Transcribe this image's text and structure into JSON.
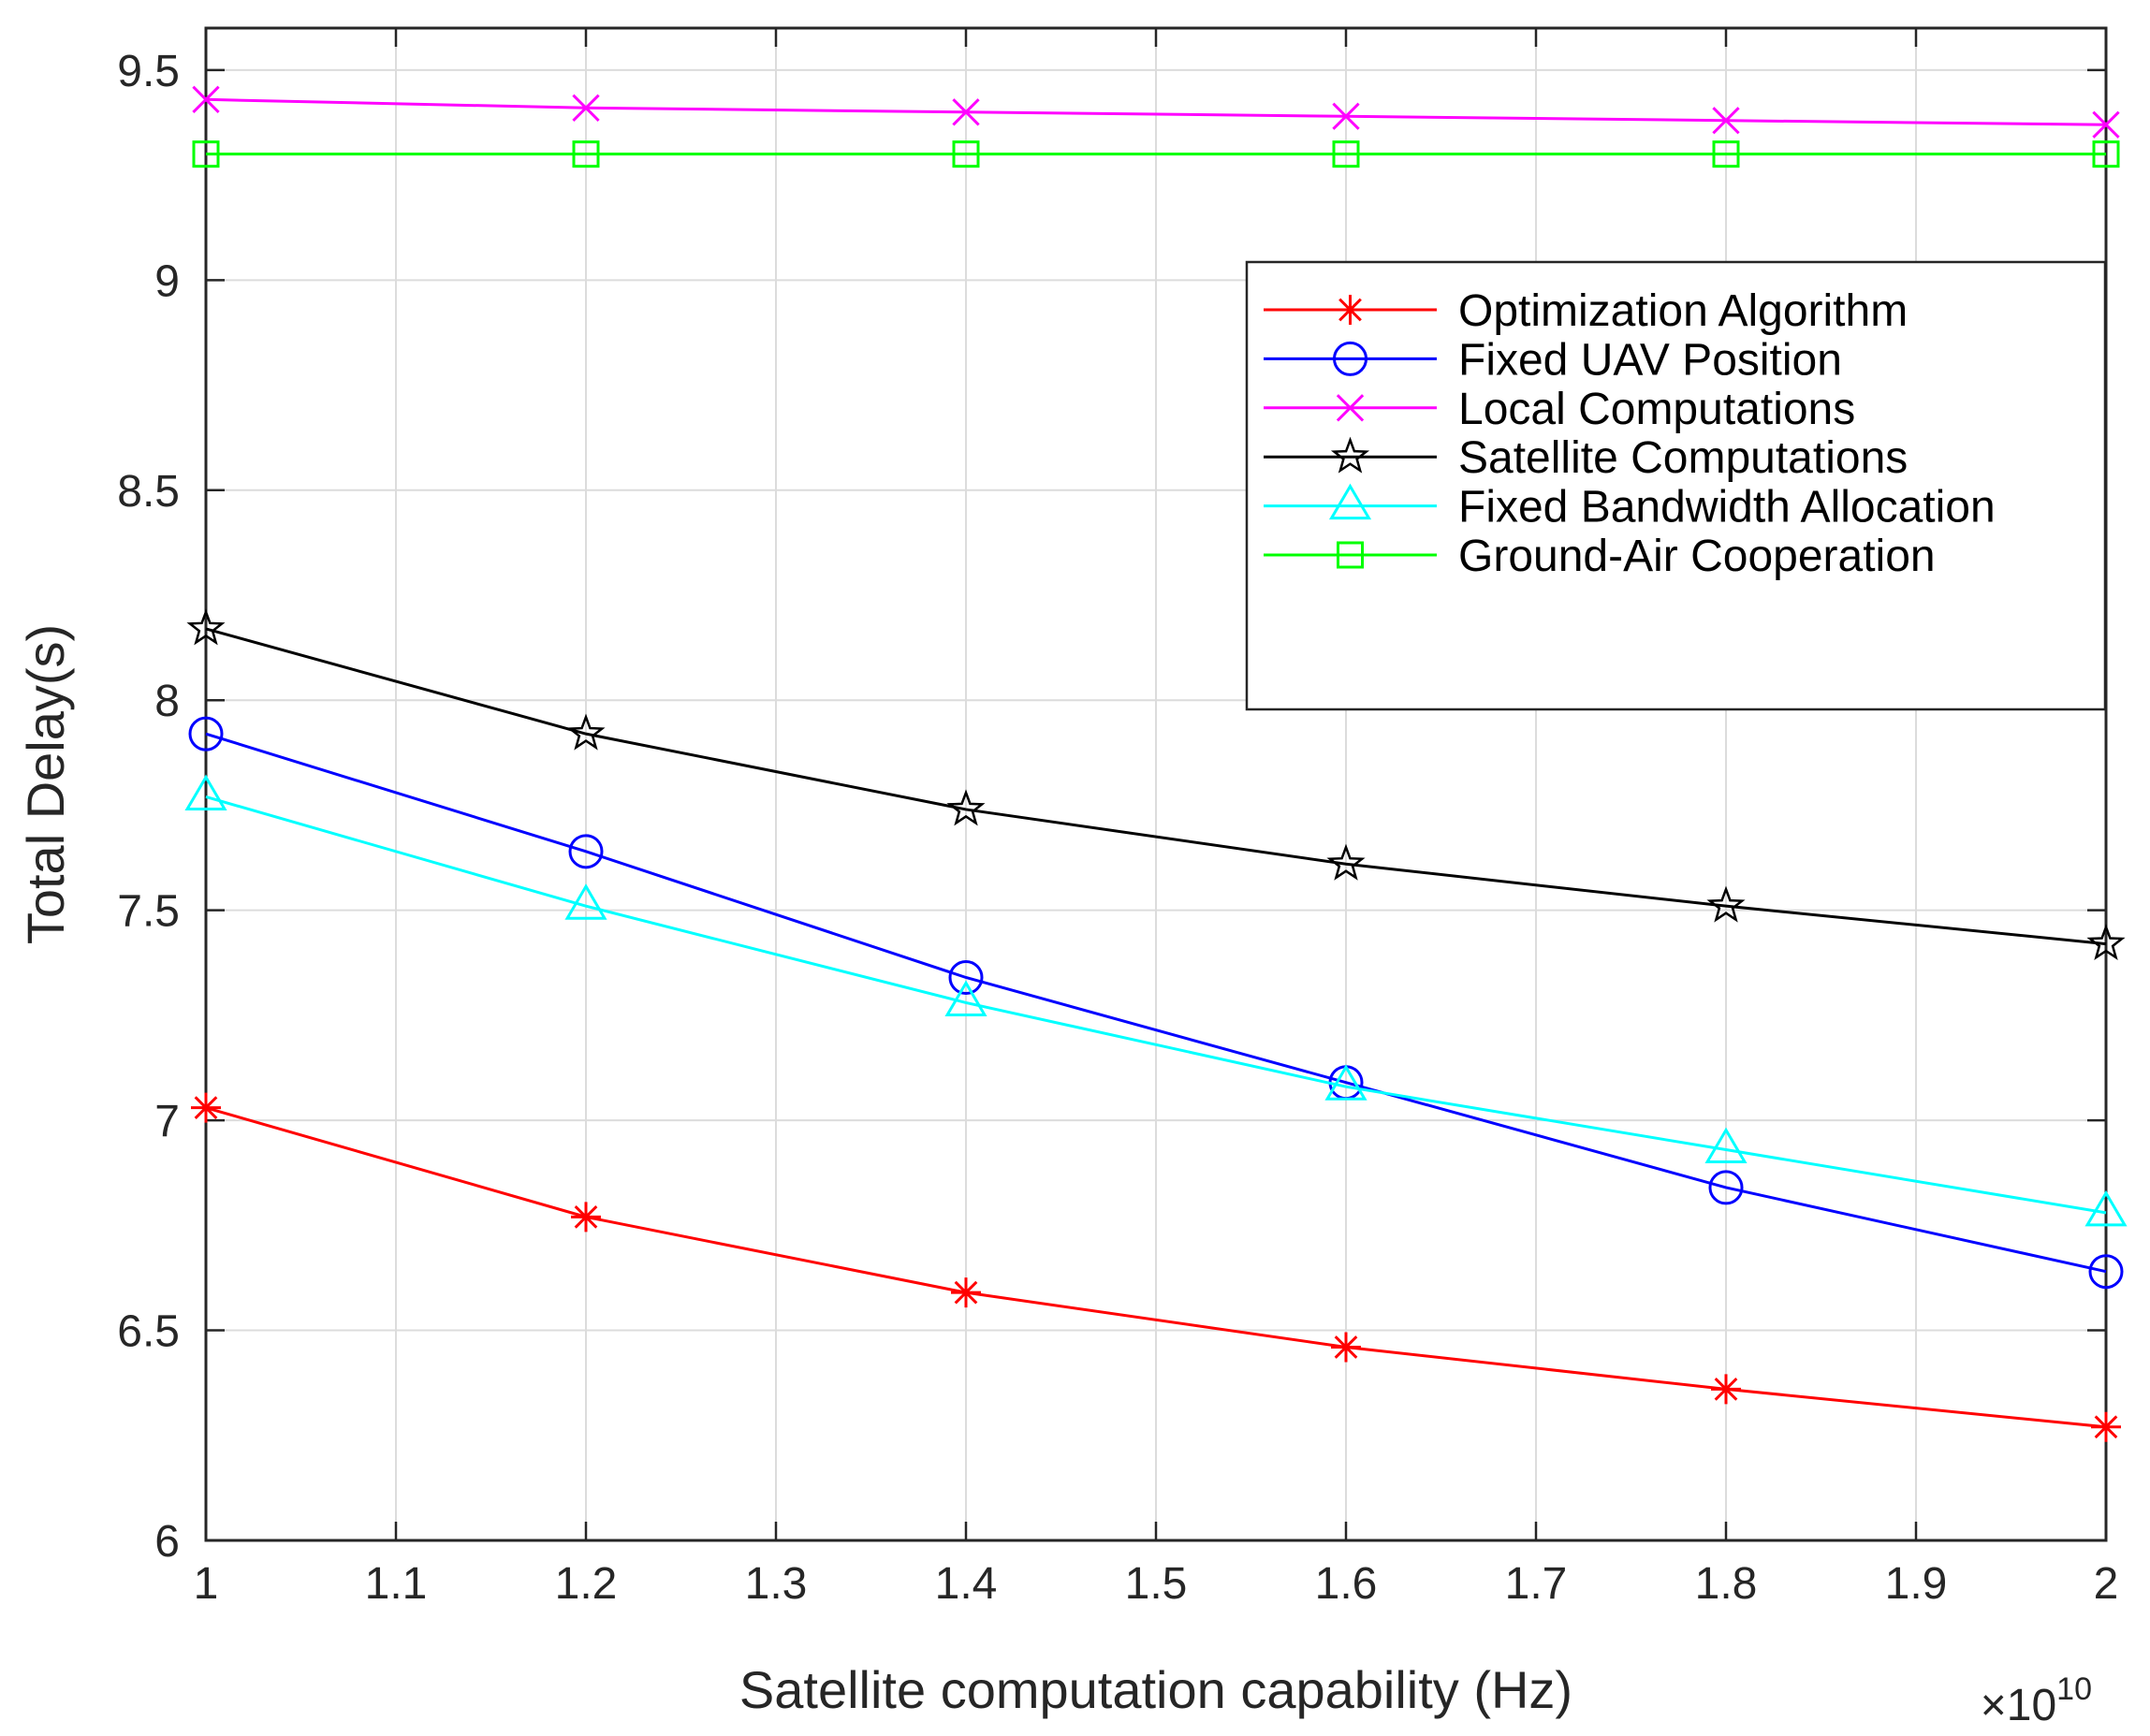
{
  "chart_data": {
    "type": "line",
    "title": "",
    "xlabel": "Satellite computation capability (Hz)",
    "ylabel": "Total Delay(s)",
    "x_exponent_label": {
      "base": "×10",
      "power": "10"
    },
    "x": [
      1.0,
      1.2,
      1.4,
      1.6,
      1.8,
      2.0
    ],
    "xlim": [
      1.0,
      2.0
    ],
    "ylim": [
      6.0,
      9.6
    ],
    "xticks": [
      1,
      1.1,
      1.2,
      1.3,
      1.4,
      1.5,
      1.6,
      1.7,
      1.8,
      1.9,
      2
    ],
    "xtick_labels": [
      "1",
      "1.1",
      "1.2",
      "1.3",
      "1.4",
      "1.5",
      "1.6",
      "1.7",
      "1.8",
      "1.9",
      "2"
    ],
    "yticks": [
      6,
      6.5,
      7,
      7.5,
      8,
      8.5,
      9,
      9.5
    ],
    "ytick_labels": [
      "6",
      "6.5",
      "7",
      "7.5",
      "8",
      "8.5",
      "9",
      "9.5"
    ],
    "grid": true,
    "legend_position": "top-right",
    "series": [
      {
        "name": "Optimization Algorithm",
        "color": "#ff0000",
        "marker": "asterisk",
        "values": [
          7.03,
          6.77,
          6.59,
          6.46,
          6.36,
          6.27
        ]
      },
      {
        "name": "Fixed UAV Position",
        "color": "#0000ff",
        "marker": "circle",
        "values": [
          7.92,
          7.64,
          7.34,
          7.09,
          6.84,
          6.64
        ]
      },
      {
        "name": "Local Computations",
        "color": "#ff00ff",
        "marker": "x",
        "values": [
          9.43,
          9.41,
          9.4,
          9.39,
          9.38,
          9.37
        ]
      },
      {
        "name": "Satellite Computations",
        "color": "#000000",
        "marker": "star",
        "values": [
          8.17,
          7.92,
          7.74,
          7.61,
          7.51,
          7.42
        ]
      },
      {
        "name": "Fixed Bandwidth Allocation",
        "color": "#00ffff",
        "marker": "triangle",
        "values": [
          7.77,
          7.51,
          7.28,
          7.08,
          6.93,
          6.78
        ]
      },
      {
        "name": "Ground-Air Cooperation",
        "color": "#00ff00",
        "marker": "square",
        "values": [
          9.3,
          9.3,
          9.3,
          9.3,
          9.3,
          9.3
        ]
      }
    ]
  }
}
